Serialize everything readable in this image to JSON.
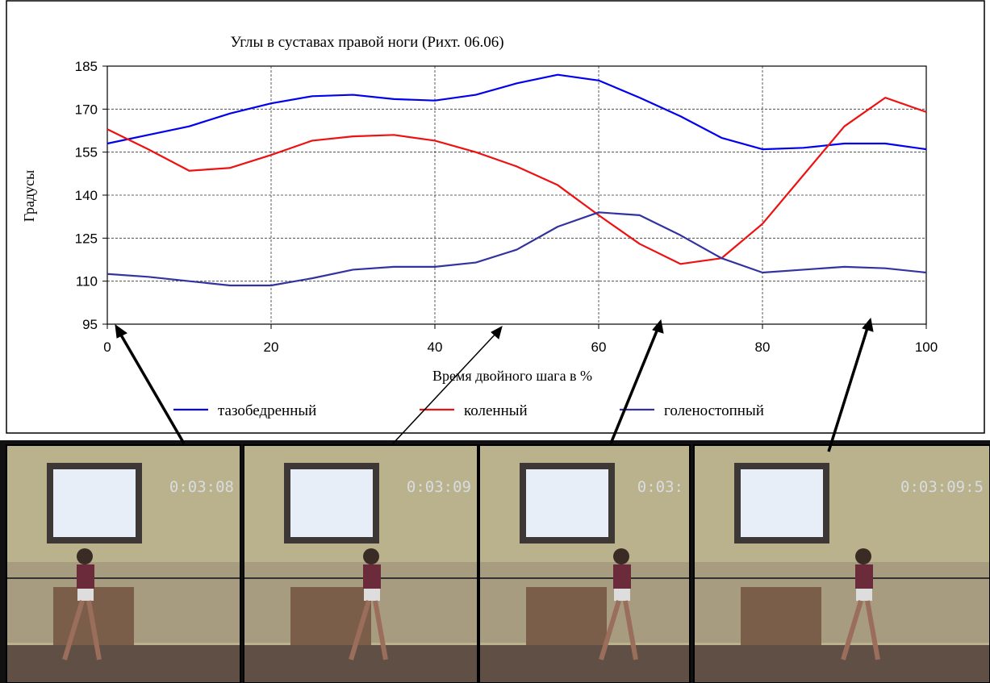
{
  "chart_data": {
    "type": "line",
    "title": "Углы в суставах правой ноги (Рихт. 06.06)",
    "x_label": "Время двойного шага в %",
    "y_label": "Градусы",
    "x": [
      0,
      5,
      10,
      15,
      20,
      25,
      30,
      35,
      40,
      45,
      50,
      55,
      60,
      65,
      70,
      75,
      80,
      85,
      90,
      95,
      100
    ],
    "series": [
      {
        "name": "тазобедренный",
        "color": "#0000ee",
        "values": [
          158,
          161,
          164,
          168.5,
          172,
          174.5,
          175,
          173.5,
          173,
          175,
          179,
          182,
          180,
          174,
          167.5,
          160,
          156,
          156.5,
          158,
          158,
          156
        ]
      },
      {
        "name": "коленный",
        "color": "#ee1111",
        "values": [
          163,
          156,
          148.5,
          149.5,
          154,
          159,
          160.5,
          161,
          159,
          155,
          150,
          143.5,
          133,
          123,
          116,
          118,
          130,
          147,
          164,
          174,
          169
        ]
      },
      {
        "name": "голеностопный",
        "color": "#3333a0",
        "values": [
          112.5,
          111.5,
          110,
          108.5,
          108.5,
          111,
          114,
          115,
          115,
          116.5,
          121,
          129,
          134,
          133,
          126,
          118,
          113,
          114,
          115,
          114.5,
          113
        ]
      }
    ],
    "xlim": [
      0,
      100
    ],
    "xticks": [
      0,
      20,
      40,
      60,
      80,
      100
    ],
    "ylim": [
      95,
      185
    ],
    "yticks": [
      95,
      110,
      125,
      140,
      155,
      170,
      185
    ],
    "grid": true,
    "legend": "bottom"
  },
  "frames": [
    {
      "timestamp": "0:03:08"
    },
    {
      "timestamp": "0:03:09"
    },
    {
      "timestamp": "0:03:"
    },
    {
      "timestamp": "0:03:09:5"
    }
  ]
}
